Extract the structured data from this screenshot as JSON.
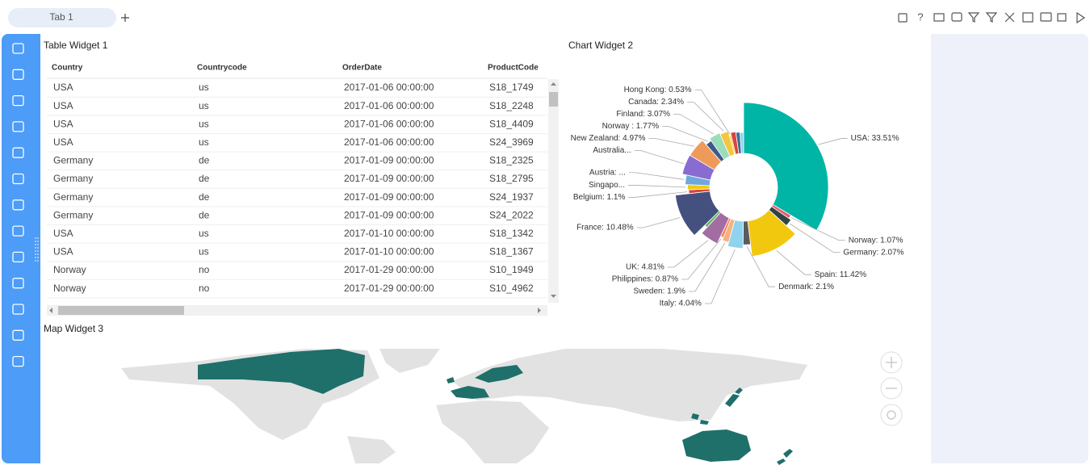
{
  "tabs": [
    {
      "label": "Tab 1"
    }
  ],
  "table_widget": {
    "title": "Table Widget 1",
    "columns": [
      "Country",
      "Countrycode",
      "OrderDate",
      "ProductCode"
    ],
    "rows": [
      [
        "USA",
        "us",
        "2017-01-06 00:00:00",
        "S18_1749"
      ],
      [
        "USA",
        "us",
        "2017-01-06 00:00:00",
        "S18_2248"
      ],
      [
        "USA",
        "us",
        "2017-01-06 00:00:00",
        "S18_4409"
      ],
      [
        "USA",
        "us",
        "2017-01-06 00:00:00",
        "S24_3969"
      ],
      [
        "Germany",
        "de",
        "2017-01-09 00:00:00",
        "S18_2325"
      ],
      [
        "Germany",
        "de",
        "2017-01-09 00:00:00",
        "S18_2795"
      ],
      [
        "Germany",
        "de",
        "2017-01-09 00:00:00",
        "S24_1937"
      ],
      [
        "Germany",
        "de",
        "2017-01-09 00:00:00",
        "S24_2022"
      ],
      [
        "USA",
        "us",
        "2017-01-10 00:00:00",
        "S18_1342"
      ],
      [
        "USA",
        "us",
        "2017-01-10 00:00:00",
        "S18_1367"
      ],
      [
        "Norway",
        "no",
        "2017-01-29 00:00:00",
        "S10_1949"
      ],
      [
        "Norway",
        "no",
        "2017-01-29 00:00:00",
        "S10_4962"
      ]
    ]
  },
  "chart_data": {
    "type": "pie",
    "rose": true,
    "title": "Chart Widget 2",
    "value_labels": [
      "USA: 33.51%",
      "Norway: 1.07%",
      "Germany: 2.07%",
      "Spain: 11.42%",
      "Denmark: 2.1%",
      "Italy: 4.04%",
      "Sweden: 1.9%",
      "Philippines: 0.87%",
      "UK: 4.81%",
      null,
      "France: 10.48%",
      "Belgium: 1.1%",
      "Singapo...",
      "Austria: ...",
      "Australia...",
      "New Zealand: 4.97%",
      "Norway : 1.77%",
      "Finland: 3.07%",
      "Canada: 2.34%",
      "Hong Kong: 0.53%",
      null,
      null,
      null
    ],
    "values": [
      33.51,
      1.07,
      2.07,
      11.42,
      2.1,
      4.04,
      1.9,
      0.87,
      4.81,
      0.9,
      10.48,
      1.1,
      1.5,
      2.6,
      5.2,
      4.97,
      1.77,
      3.07,
      2.34,
      0.53,
      1.5,
      1.2,
      1.05
    ],
    "colors": [
      "#00b5a5",
      "#e55c6b",
      "#2f4445",
      "#f2c80f",
      "#5b5b5b",
      "#8fd3ee",
      "#f4b183",
      "#fd7e50",
      "#a36ca3",
      "#5fb55f",
      "#44517f",
      "#d9443f",
      "#f2c80f",
      "#6fa8dc",
      "#8a6cd1",
      "#f09a5a",
      "#3d5a8a",
      "#9bdcb9",
      "#f4c542",
      "#f2c80f",
      "#d9443f",
      "#3a6f9a",
      "#8fd3ee"
    ]
  },
  "map_widget": {
    "title": "Map Widget 3"
  }
}
